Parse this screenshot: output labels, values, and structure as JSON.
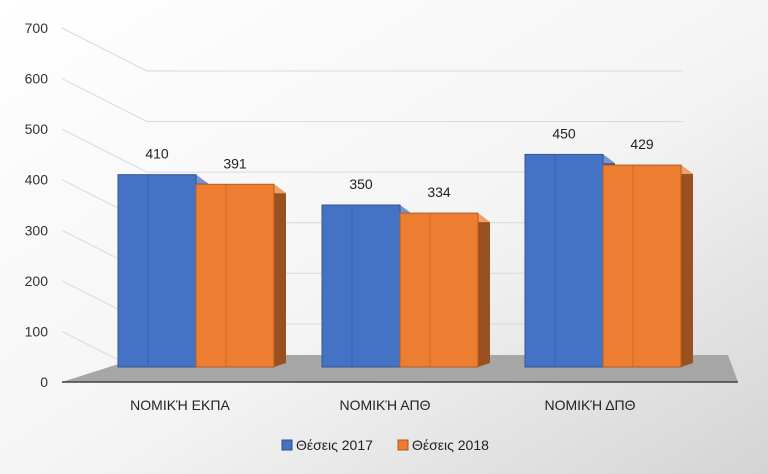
{
  "chart_data": {
    "type": "bar",
    "categories": [
      "ΝΟΜΙΚΉ ΕΚΠΑ",
      "ΝΟΜΙΚΉ ΑΠΘ",
      "ΝΟΜΙΚΉ ΔΠΘ"
    ],
    "series": [
      {
        "name": "Θέσεις 2017",
        "values": [
          410,
          350,
          450
        ]
      },
      {
        "name": "Θέσεις 2018",
        "values": [
          391,
          334,
          429
        ]
      }
    ],
    "title": "",
    "xlabel": "",
    "ylabel": "",
    "ylim": [
      0,
      700
    ],
    "yticks": [
      0,
      100,
      200,
      300,
      400,
      500,
      600,
      700
    ],
    "grid": true,
    "legend_position": "bottom",
    "colors": [
      "#4472C4",
      "#ED7D31"
    ]
  }
}
